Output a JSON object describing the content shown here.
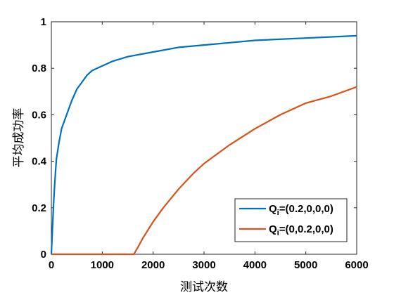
{
  "chart_data": {
    "type": "line",
    "xlabel": "测试次数",
    "ylabel": "平均成功率",
    "xlim": [
      0,
      6000
    ],
    "ylim": [
      0,
      1
    ],
    "x_ticks": [
      0,
      1000,
      2000,
      3000,
      4000,
      5000,
      6000
    ],
    "y_ticks": [
      0,
      0.2,
      0.4,
      0.6,
      0.8,
      1
    ],
    "grid": false,
    "legend_position": "bottom-right",
    "series": [
      {
        "name": "Qi=(0.2,0,0,0)",
        "legend_main": "Q",
        "legend_sub": "i",
        "legend_rest": "=(0.2,0,0,0)",
        "color": "#0072BD",
        "x": [
          0,
          20,
          40,
          60,
          80,
          100,
          150,
          200,
          300,
          400,
          500,
          600,
          700,
          800,
          1000,
          1200,
          1500,
          2000,
          2500,
          3000,
          3500,
          4000,
          5000,
          6000
        ],
        "y": [
          0,
          0.1,
          0.2,
          0.28,
          0.35,
          0.41,
          0.48,
          0.54,
          0.6,
          0.66,
          0.71,
          0.74,
          0.77,
          0.79,
          0.81,
          0.83,
          0.85,
          0.87,
          0.89,
          0.9,
          0.91,
          0.92,
          0.93,
          0.94
        ]
      },
      {
        "name": "Qi=(0,0.2,0,0)",
        "legend_main": "Q",
        "legend_sub": "i",
        "legend_rest": "=(0,0.2,0,0)",
        "color": "#D95319",
        "x": [
          0,
          1000,
          1620,
          1700,
          1800,
          2000,
          2200,
          2500,
          2800,
          3000,
          3500,
          4000,
          4500,
          5000,
          5500,
          6000
        ],
        "y": [
          0,
          0,
          0,
          0.03,
          0.07,
          0.14,
          0.2,
          0.28,
          0.35,
          0.39,
          0.47,
          0.54,
          0.6,
          0.65,
          0.68,
          0.72
        ]
      }
    ]
  }
}
